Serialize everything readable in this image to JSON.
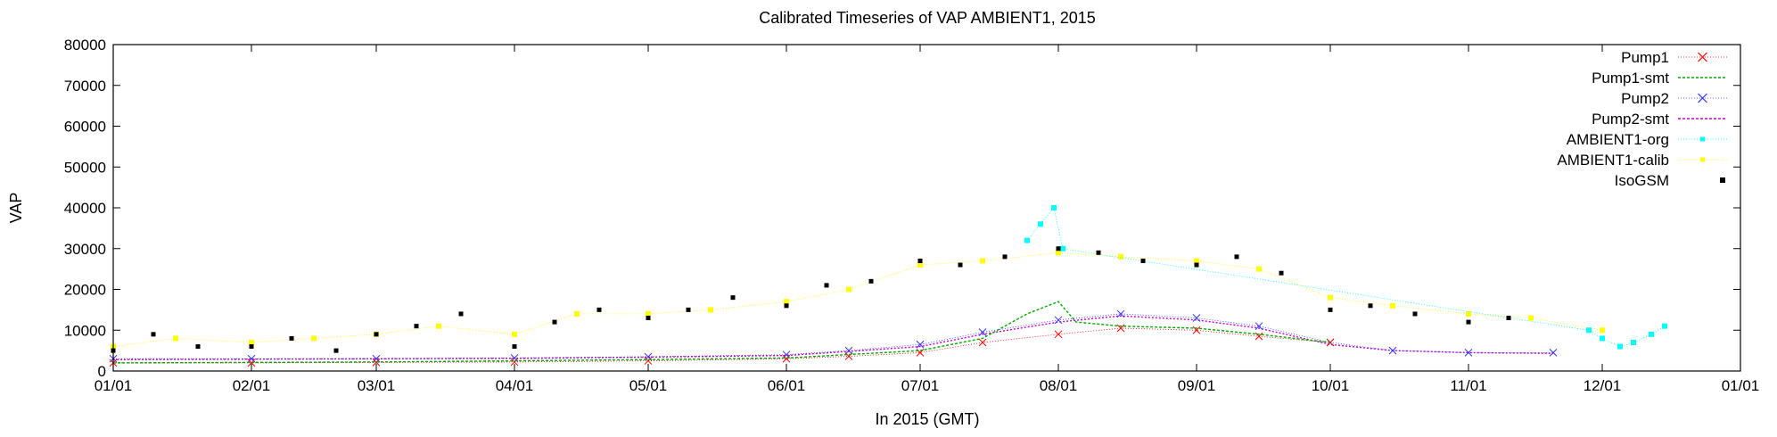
{
  "chart_data": {
    "type": "scatter",
    "title": "Calibrated Timeseries of VAP AMBIENT1, 2015",
    "xlabel": "In 2015 (GMT)",
    "ylabel": "VAP",
    "ylim": [
      0,
      80000
    ],
    "x_ticks": [
      "01/01",
      "02/01",
      "03/01",
      "04/01",
      "05/01",
      "06/01",
      "07/01",
      "08/01",
      "09/01",
      "10/01",
      "11/01",
      "12/01",
      "01/01"
    ],
    "y_ticks": [
      "0",
      "10000",
      "20000",
      "30000",
      "40000",
      "50000",
      "60000",
      "70000",
      "80000"
    ],
    "legend_position": "top-right",
    "series": [
      {
        "name": "Pump1",
        "color": "#ff0000",
        "marker": "x",
        "x": [
          "2015-01-01",
          "2015-02-01",
          "2015-03-01",
          "2015-04-01",
          "2015-05-01",
          "2015-06-01",
          "2015-06-15",
          "2015-07-01",
          "2015-07-15",
          "2015-08-01",
          "2015-08-15",
          "2015-09-01",
          "2015-09-15",
          "2015-10-01"
        ],
        "values": [
          2000,
          2000,
          2100,
          2200,
          2500,
          3000,
          3600,
          4500,
          7000,
          9000,
          10500,
          10000,
          8500,
          7000
        ]
      },
      {
        "name": "Pump1-smt",
        "color": "#00aa00",
        "marker": "line",
        "x": [
          "2015-01-01",
          "2015-02-01",
          "2015-03-01",
          "2015-04-01",
          "2015-05-01",
          "2015-06-01",
          "2015-07-01",
          "2015-07-15",
          "2015-07-25",
          "2015-08-01",
          "2015-08-05",
          "2015-08-15",
          "2015-09-01",
          "2015-09-15",
          "2015-10-01"
        ],
        "values": [
          2000,
          2100,
          2200,
          2500,
          2800,
          3200,
          5000,
          8000,
          14000,
          17000,
          12000,
          11000,
          10500,
          9000,
          7000
        ]
      },
      {
        "name": "Pump2",
        "color": "#3333ff",
        "marker": "x",
        "x": [
          "2015-01-01",
          "2015-02-01",
          "2015-03-01",
          "2015-04-01",
          "2015-05-01",
          "2015-06-01",
          "2015-06-15",
          "2015-07-01",
          "2015-07-15",
          "2015-08-01",
          "2015-08-15",
          "2015-09-01",
          "2015-09-15",
          "2015-10-01",
          "2015-10-15",
          "2015-11-01",
          "2015-11-20"
        ],
        "values": [
          3000,
          3000,
          3000,
          3200,
          3500,
          4000,
          5000,
          6500,
          9500,
          12500,
          14000,
          13000,
          11000,
          7000,
          5000,
          4500,
          4500
        ]
      },
      {
        "name": "Pump2-smt",
        "color": "#cc00cc",
        "marker": "line",
        "x": [
          "2015-01-01",
          "2015-02-01",
          "2015-03-01",
          "2015-04-01",
          "2015-05-01",
          "2015-06-01",
          "2015-06-15",
          "2015-07-01",
          "2015-07-15",
          "2015-08-01",
          "2015-08-15",
          "2015-09-01",
          "2015-09-15",
          "2015-10-01",
          "2015-10-15",
          "2015-11-01",
          "2015-11-20"
        ],
        "values": [
          2800,
          2900,
          3000,
          3100,
          3400,
          3800,
          4800,
          6000,
          9000,
          12000,
          13500,
          12500,
          10500,
          6500,
          5000,
          4500,
          4300
        ]
      },
      {
        "name": "AMBIENT1-org",
        "color": "#00ffff",
        "marker": "dot",
        "x": [
          "2015-07-25",
          "2015-07-28",
          "2015-07-31",
          "2015-08-02",
          "2015-11-28",
          "2015-12-01",
          "2015-12-05",
          "2015-12-08",
          "2015-12-12",
          "2015-12-15"
        ],
        "values": [
          32000,
          36000,
          40000,
          30000,
          10000,
          8000,
          6000,
          7000,
          9000,
          11000
        ]
      },
      {
        "name": "AMBIENT1-calib",
        "color": "#ffff00",
        "marker": "dot",
        "x": [
          "2015-01-01",
          "2015-01-15",
          "2015-02-01",
          "2015-02-15",
          "2015-03-01",
          "2015-03-15",
          "2015-04-01",
          "2015-04-15",
          "2015-05-01",
          "2015-05-15",
          "2015-06-01",
          "2015-06-15",
          "2015-07-01",
          "2015-07-15",
          "2015-08-01",
          "2015-08-15",
          "2015-09-01",
          "2015-09-15",
          "2015-10-01",
          "2015-10-15",
          "2015-11-01",
          "2015-11-15",
          "2015-12-01"
        ],
        "values": [
          6000,
          8000,
          7000,
          8000,
          9000,
          11000,
          9000,
          14000,
          14000,
          15000,
          17000,
          20000,
          26000,
          27000,
          29000,
          28000,
          27000,
          25000,
          18000,
          16000,
          14000,
          13000,
          10000
        ]
      },
      {
        "name": "IsoGSM",
        "color": "#000000",
        "marker": "square",
        "x": [
          "2015-01-01",
          "2015-01-10",
          "2015-01-20",
          "2015-02-01",
          "2015-02-10",
          "2015-02-20",
          "2015-03-01",
          "2015-03-10",
          "2015-03-20",
          "2015-04-01",
          "2015-04-10",
          "2015-04-20",
          "2015-05-01",
          "2015-05-10",
          "2015-05-20",
          "2015-06-01",
          "2015-06-10",
          "2015-06-20",
          "2015-07-01",
          "2015-07-10",
          "2015-07-20",
          "2015-08-01",
          "2015-08-10",
          "2015-08-20",
          "2015-09-01",
          "2015-09-10",
          "2015-09-20",
          "2015-10-01",
          "2015-10-10",
          "2015-10-20",
          "2015-11-01",
          "2015-11-10"
        ],
        "values": [
          5000,
          9000,
          6000,
          6000,
          8000,
          5000,
          9000,
          11000,
          14000,
          6000,
          12000,
          15000,
          13000,
          15000,
          18000,
          16000,
          21000,
          22000,
          27000,
          26000,
          28000,
          30000,
          29000,
          27000,
          26000,
          28000,
          24000,
          15000,
          16000,
          14000,
          12000,
          13000
        ]
      }
    ]
  }
}
